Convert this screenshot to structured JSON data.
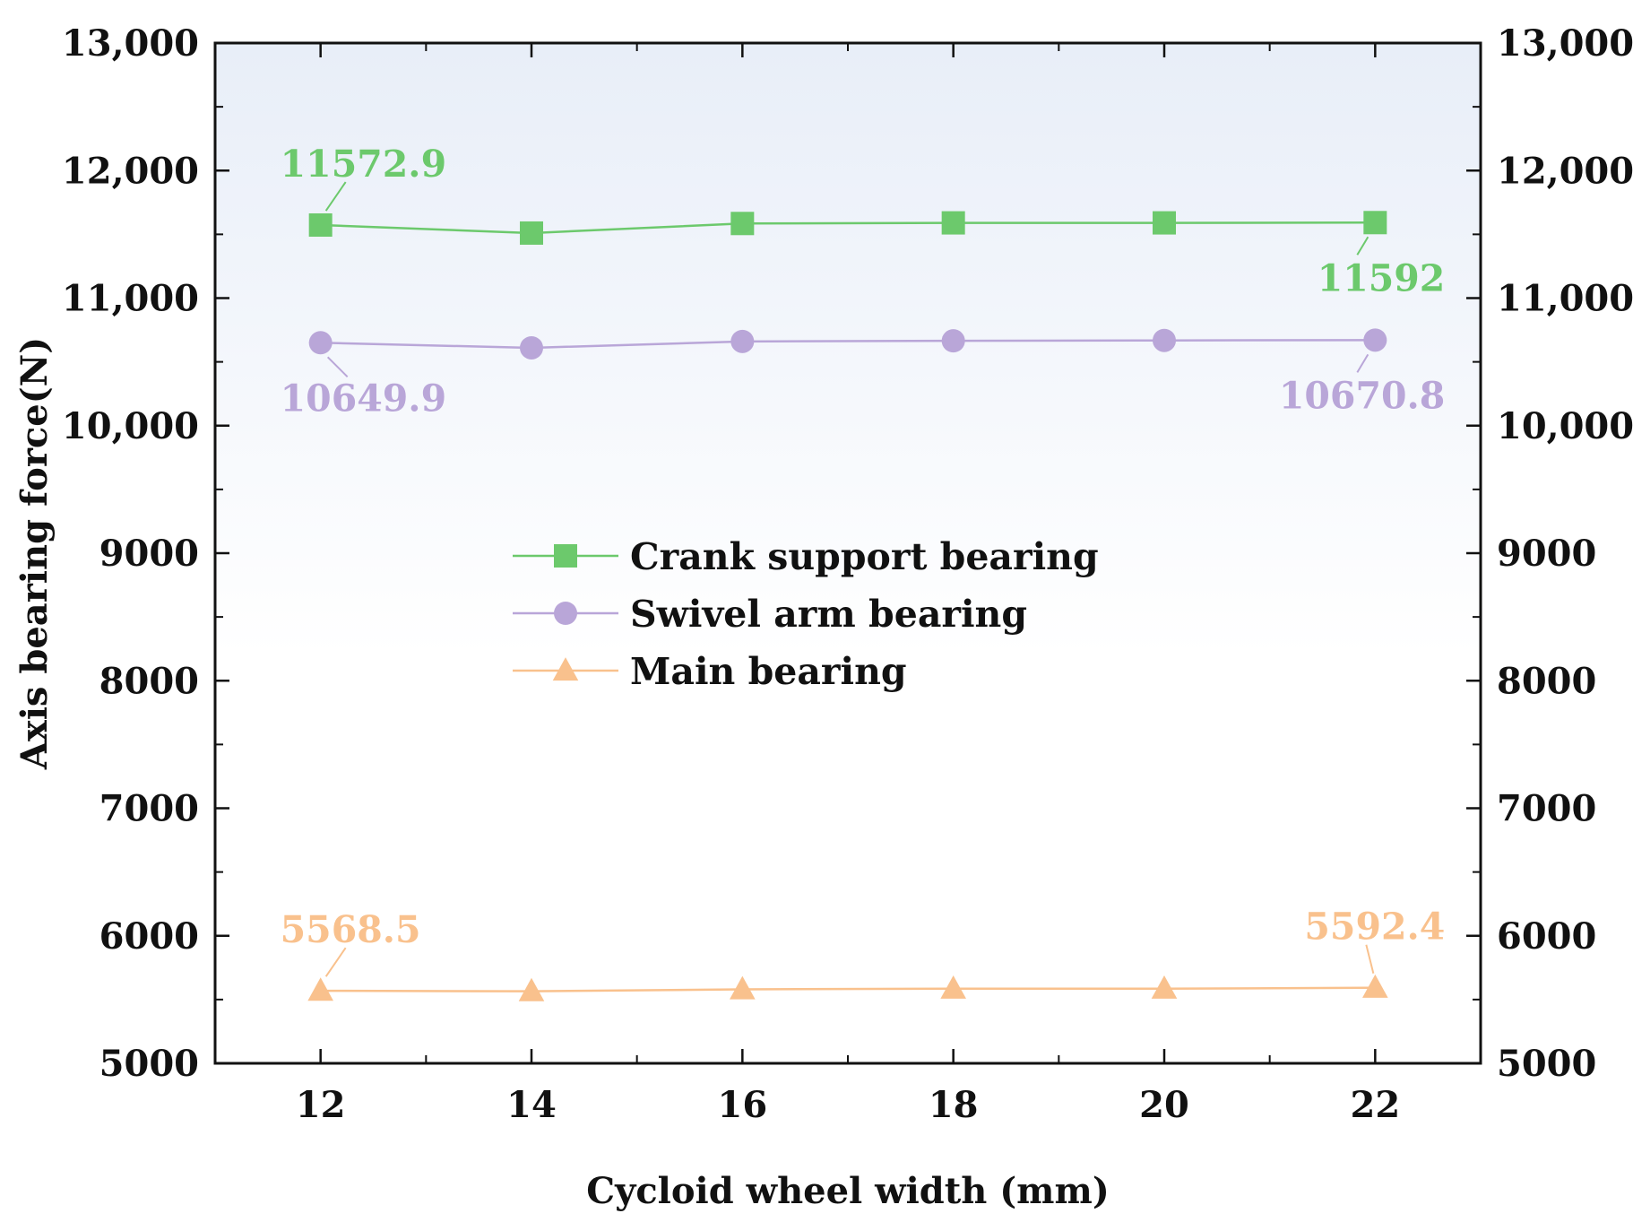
{
  "chart_data": {
    "type": "line",
    "title": "",
    "xlabel": "Cycloid wheel width (mm)",
    "ylabel": "Axis bearing force(N)",
    "x": [
      12,
      14,
      16,
      18,
      20,
      22
    ],
    "xlim": [
      11,
      23
    ],
    "ylim": [
      5000,
      13000
    ],
    "x_ticks": [
      12,
      14,
      16,
      18,
      20,
      22
    ],
    "x_tick_labels": [
      "12",
      "14",
      "16",
      "18",
      "20",
      "22"
    ],
    "y_ticks": [
      5000,
      6000,
      7000,
      8000,
      9000,
      10000,
      11000,
      12000,
      13000
    ],
    "y_tick_labels": [
      "5000",
      "6000",
      "7000",
      "8000",
      "9000",
      "10,000",
      "11,000",
      "12,000",
      "13,000"
    ],
    "right_axis_mirrors_left": true,
    "grid": false,
    "legend_position": "center",
    "series": [
      {
        "name": "Crank support bearing",
        "marker": "square",
        "color": "#6cc96c",
        "values": [
          11572.9,
          11510,
          11585,
          11590,
          11590,
          11592
        ],
        "annotations": [
          {
            "index": 0,
            "text": "11572.9",
            "placement": "above"
          },
          {
            "index": 5,
            "text": "11592",
            "placement": "below"
          }
        ]
      },
      {
        "name": "Swivel arm bearing",
        "marker": "circle",
        "color": "#b9a6d8",
        "values": [
          10649.9,
          10610,
          10660,
          10665,
          10668,
          10670.8
        ],
        "annotations": [
          {
            "index": 0,
            "text": "10649.9",
            "placement": "below"
          },
          {
            "index": 5,
            "text": "10670.8",
            "placement": "below"
          }
        ]
      },
      {
        "name": "Main bearing",
        "marker": "triangle",
        "color": "#f9c18d",
        "values": [
          5568.5,
          5565,
          5580,
          5585,
          5585,
          5592.4
        ],
        "annotations": [
          {
            "index": 0,
            "text": "5568.5",
            "placement": "above"
          },
          {
            "index": 5,
            "text": "5592.4",
            "placement": "above"
          }
        ]
      }
    ]
  }
}
